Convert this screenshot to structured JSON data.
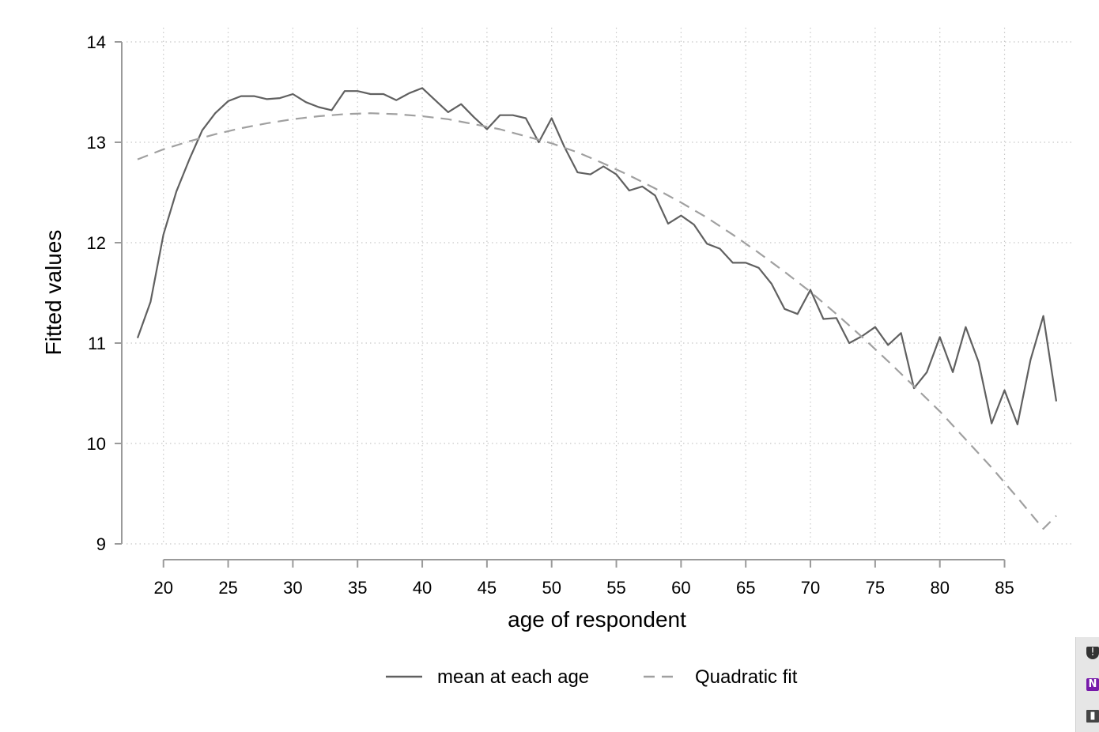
{
  "chart_data": {
    "type": "line",
    "title": "",
    "xlabel": "age of respondent",
    "ylabel": "Fitted values",
    "xlim": [
      18,
      89
    ],
    "ylim": [
      9,
      14
    ],
    "x_ticks": [
      20,
      25,
      30,
      35,
      40,
      45,
      50,
      55,
      60,
      65,
      70,
      75,
      80,
      85
    ],
    "y_ticks": [
      9,
      10,
      11,
      12,
      13,
      14
    ],
    "grid": true,
    "legend_position": "bottom",
    "series": [
      {
        "name": "mean at each age",
        "style": "solid",
        "color": "#606060",
        "x": [
          18,
          19,
          20,
          21,
          22,
          23,
          24,
          25,
          26,
          27,
          28,
          29,
          30,
          31,
          32,
          33,
          34,
          35,
          36,
          37,
          38,
          39,
          40,
          41,
          42,
          43,
          44,
          45,
          46,
          47,
          48,
          49,
          50,
          51,
          52,
          53,
          54,
          55,
          56,
          57,
          58,
          59,
          60,
          61,
          62,
          63,
          64,
          65,
          66,
          67,
          68,
          69,
          70,
          71,
          72,
          73,
          74,
          75,
          76,
          77,
          78,
          79,
          80,
          81,
          82,
          83,
          84,
          85,
          86,
          87,
          88,
          89
        ],
        "y": [
          11.05,
          11.41,
          12.08,
          12.51,
          12.83,
          13.12,
          13.29,
          13.41,
          13.46,
          13.46,
          13.43,
          13.44,
          13.48,
          13.4,
          13.35,
          13.32,
          13.51,
          13.51,
          13.48,
          13.48,
          13.42,
          13.49,
          13.54,
          13.42,
          13.3,
          13.38,
          13.25,
          13.13,
          13.27,
          13.27,
          13.24,
          13.0,
          13.24,
          12.95,
          12.7,
          12.68,
          12.76,
          12.68,
          12.52,
          12.56,
          12.47,
          12.19,
          12.27,
          12.18,
          11.99,
          11.94,
          11.8,
          11.8,
          11.75,
          11.59,
          11.34,
          11.29,
          11.53,
          11.24,
          11.25,
          11.0,
          11.07,
          11.16,
          10.98,
          11.1,
          10.55,
          10.71,
          11.06,
          10.71,
          11.16,
          10.81,
          10.2,
          10.53,
          10.19,
          10.83,
          11.27,
          10.42
        ]
      },
      {
        "name": "Quadratic fit",
        "style": "dashed",
        "color": "#a0a0a0",
        "x": [
          18,
          20,
          22,
          24,
          26,
          28,
          30,
          32,
          34,
          36,
          38,
          40,
          42,
          44,
          46,
          48,
          50,
          52,
          54,
          56,
          58,
          60,
          62,
          64,
          66,
          68,
          70,
          72,
          74,
          76,
          78,
          80,
          82,
          84,
          86,
          88,
          89
        ],
        "y": [
          12.83,
          12.93,
          13.01,
          13.08,
          13.14,
          13.19,
          13.23,
          13.26,
          13.28,
          13.29,
          13.28,
          13.26,
          13.23,
          13.18,
          13.13,
          13.06,
          12.99,
          12.9,
          12.79,
          12.67,
          12.54,
          12.4,
          12.25,
          12.08,
          11.9,
          11.71,
          11.51,
          11.29,
          11.06,
          10.82,
          10.57,
          10.32,
          10.04,
          9.76,
          9.46,
          9.15,
          9.28
        ]
      }
    ]
  },
  "tray": {
    "icons": [
      "shield-warning-icon",
      "onenote-icon",
      "bookmark-icon"
    ],
    "onenote_glyph": "N"
  }
}
